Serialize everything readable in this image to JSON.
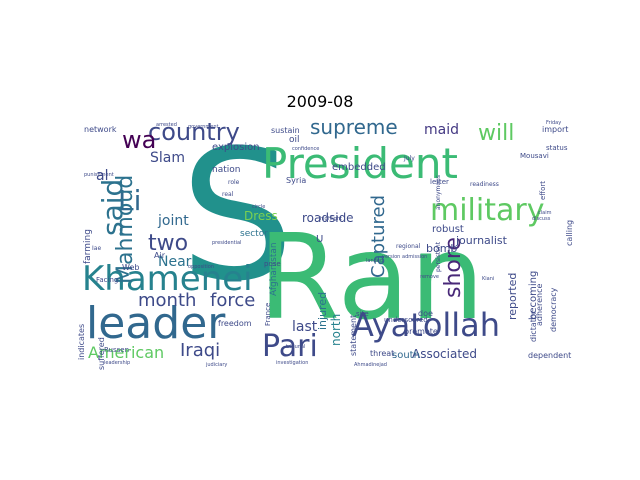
{
  "chart_data": {
    "type": "wordcloud",
    "title": "2009-08",
    "background": "#ffffff",
    "words": [
      {
        "text": "S",
        "color": "#21918c"
      },
      {
        "text": "Ran",
        "color": "#3bbb75"
      },
      {
        "text": "President",
        "color": "#3bbb75"
      },
      {
        "text": "leader",
        "color": "#31688e"
      },
      {
        "text": "Ayatollah",
        "color": "#3e4a89"
      },
      {
        "text": "Khamenei",
        "color": "#26828e"
      },
      {
        "text": "military",
        "color": "#5ec962"
      },
      {
        "text": "country",
        "color": "#3e4a89"
      },
      {
        "text": "supreme",
        "color": "#31688e"
      },
      {
        "text": "said",
        "color": "#2c728e"
      },
      {
        "text": "Li",
        "color": "#31688e"
      },
      {
        "text": "wa",
        "color": "#440154"
      },
      {
        "text": "Mahmoud",
        "color": "#2c728e"
      },
      {
        "text": "will",
        "color": "#5ec962"
      },
      {
        "text": "shore",
        "color": "#482878"
      },
      {
        "text": "Pari",
        "color": "#3e4a89"
      },
      {
        "text": "two",
        "color": "#3e4a89"
      },
      {
        "text": "month",
        "color": "#3e4a89"
      },
      {
        "text": "force",
        "color": "#3e4a89"
      },
      {
        "text": "Captured",
        "color": "#31688e"
      },
      {
        "text": "Iraqi",
        "color": "#3e4a89"
      },
      {
        "text": "American",
        "color": "#5ec962"
      },
      {
        "text": "maid",
        "color": "#443983"
      },
      {
        "text": "Slam",
        "color": "#3e4a89"
      },
      {
        "text": "joint",
        "color": "#31688e"
      },
      {
        "text": "Near",
        "color": "#2c728e"
      },
      {
        "text": "last",
        "color": "#3e4a89"
      },
      {
        "text": "al",
        "color": "#3e4a89"
      },
      {
        "text": "Associated",
        "color": "#3e4a89"
      },
      {
        "text": "north",
        "color": "#26828e"
      },
      {
        "text": "Dress",
        "color": "#7ad151"
      },
      {
        "text": "roadside",
        "color": "#3e4a89"
      },
      {
        "text": "bomb",
        "color": "#3e4a89"
      },
      {
        "text": "journalist",
        "color": "#3e4a89"
      },
      {
        "text": "injured",
        "color": "#2c728e"
      },
      {
        "text": "reported",
        "color": "#3e4a89"
      },
      {
        "text": "embedded",
        "color": "#3e4a89"
      },
      {
        "text": "robust",
        "color": "#3e4a89"
      },
      {
        "text": "explosion",
        "color": "#3e4a89"
      },
      {
        "text": "becoming",
        "color": "#3e4a89"
      },
      {
        "text": "south",
        "color": "#31688e"
      },
      {
        "text": "nation",
        "color": "#3e4a89"
      },
      {
        "text": "sector",
        "color": "#2c728e"
      },
      {
        "text": "U",
        "color": "#3e4a89"
      },
      {
        "text": "Afghanistan",
        "color": "#2c728e"
      },
      {
        "text": "network",
        "color": "#3e4a89"
      },
      {
        "text": "import",
        "color": "#3e4a89"
      },
      {
        "text": "oil",
        "color": "#3e4a89"
      },
      {
        "text": "sustain",
        "color": "#3e4a89"
      },
      {
        "text": "farming",
        "color": "#3e4a89"
      },
      {
        "text": "Syria",
        "color": "#3e4a89"
      },
      {
        "text": "freedom",
        "color": "#3e4a89"
      },
      {
        "text": "suffered",
        "color": "#3e4a89"
      },
      {
        "text": "indicates",
        "color": "#3e4a89"
      },
      {
        "text": "dependent",
        "color": "#3e4a89"
      },
      {
        "text": "dictator",
        "color": "#3e4a89"
      },
      {
        "text": "democracy",
        "color": "#3e4a89"
      },
      {
        "text": "calling",
        "color": "#3e4a89"
      },
      {
        "text": "adherence",
        "color": "#3e4a89"
      },
      {
        "text": "statement",
        "color": "#3e4a89"
      },
      {
        "text": "threat",
        "color": "#3e4a89"
      },
      {
        "text": "promote",
        "color": "#3e4a89"
      },
      {
        "text": "doe",
        "color": "#3e4a89"
      },
      {
        "text": "Air",
        "color": "#3e4a89"
      },
      {
        "text": "Web",
        "color": "#3e4a89"
      },
      {
        "text": "Facing",
        "color": "#3e4a89"
      },
      {
        "text": "Russen",
        "color": "#3e4a89"
      },
      {
        "text": "France",
        "color": "#3e4a89"
      },
      {
        "text": "pose",
        "color": "#3e4a89"
      },
      {
        "text": "site",
        "color": "#3e4a89"
      },
      {
        "text": "letter",
        "color": "#3e4a89"
      },
      {
        "text": "effort",
        "color": "#3e4a89"
      },
      {
        "text": "status",
        "color": "#3e4a89"
      },
      {
        "text": "underscored",
        "color": "#3e4a89"
      },
      {
        "text": "Mousavi",
        "color": "#3e4a89"
      },
      {
        "text": "role",
        "color": "#3e4a89"
      },
      {
        "text": "real",
        "color": "#3e4a89"
      },
      {
        "text": "July",
        "color": "#3e4a89"
      },
      {
        "text": "Iae",
        "color": "#3e4a89"
      },
      {
        "text": "regional",
        "color": "#3e4a89"
      },
      {
        "text": "persistent",
        "color": "#3e4a89"
      },
      {
        "text": "readiness",
        "color": "#3e4a89"
      },
      {
        "text": "anonymous",
        "color": "#3e4a89"
      },
      {
        "text": "discuss",
        "color": "#3e4a89"
      },
      {
        "text": "arrested",
        "color": "#3e4a89"
      },
      {
        "text": "Friday",
        "color": "#3e4a89"
      },
      {
        "text": "confidence",
        "color": "#3e4a89"
      },
      {
        "text": "government",
        "color": "#3e4a89"
      },
      {
        "text": "opposition",
        "color": "#3e4a89"
      },
      {
        "text": "leadership",
        "color": "#3e4a89"
      },
      {
        "text": "judiciary",
        "color": "#3e4a89"
      },
      {
        "text": "investigation",
        "color": "#3e4a89"
      },
      {
        "text": "Ahmadinejad",
        "color": "#3e4a89"
      },
      {
        "text": "presidential",
        "color": "#3e4a89"
      },
      {
        "text": "highlight",
        "color": "#3e4a89"
      },
      {
        "text": "punishment",
        "color": "#3e4a89"
      },
      {
        "text": "circle",
        "color": "#3e4a89"
      },
      {
        "text": "version",
        "color": "#3e4a89"
      },
      {
        "text": "landed",
        "color": "#3e4a89"
      },
      {
        "text": "admission",
        "color": "#3e4a89"
      },
      {
        "text": "remove",
        "color": "#3e4a89"
      },
      {
        "text": "Kiani",
        "color": "#3e4a89"
      },
      {
        "text": "claim",
        "color": "#3e4a89"
      },
      {
        "text": "tribunal",
        "color": "#3e4a89"
      }
    ]
  }
}
